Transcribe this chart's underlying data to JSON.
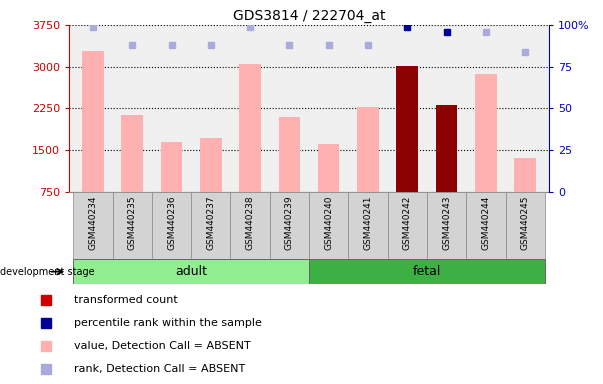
{
  "title": "GDS3814 / 222704_at",
  "samples": [
    "GSM440234",
    "GSM440235",
    "GSM440236",
    "GSM440237",
    "GSM440238",
    "GSM440239",
    "GSM440240",
    "GSM440241",
    "GSM440242",
    "GSM440243",
    "GSM440244",
    "GSM440245"
  ],
  "bar_values": [
    3280,
    2130,
    1650,
    1720,
    3050,
    2100,
    1610,
    2270,
    3010,
    2310,
    2870,
    1360
  ],
  "bar_colors": [
    "#FFB0B0",
    "#FFB0B0",
    "#FFB0B0",
    "#FFB0B0",
    "#FFB0B0",
    "#FFB0B0",
    "#FFB0B0",
    "#FFB0B0",
    "#8B0000",
    "#8B0000",
    "#FFB0B0",
    "#FFB0B0"
  ],
  "rank_values": [
    99,
    88,
    88,
    88,
    99,
    88,
    88,
    88,
    99,
    96,
    96,
    84
  ],
  "rank_colors": [
    "#AAAADD",
    "#AAAADD",
    "#AAAADD",
    "#AAAADD",
    "#AAAADD",
    "#AAAADD",
    "#AAAADD",
    "#AAAADD",
    "#000099",
    "#000099",
    "#AAAADD",
    "#AAAADD"
  ],
  "ylim_left": [
    750,
    3750
  ],
  "ylim_right": [
    0,
    100
  ],
  "yticks_left": [
    750,
    1500,
    2250,
    3000,
    3750
  ],
  "yticks_right": [
    0,
    25,
    50,
    75,
    100
  ],
  "ytick_labels_right": [
    "0",
    "25",
    "50",
    "75",
    "100%"
  ],
  "adult_color": "#90EE90",
  "fetal_color": "#3CB043",
  "sample_box_color": "#D3D3D3",
  "background_color": "#FFFFFF",
  "left_axis_color": "#CC0000",
  "right_axis_color": "#0000CC",
  "legend_colors": [
    "#CC0000",
    "#000099",
    "#FFB0B0",
    "#AAAADD"
  ],
  "legend_labels": [
    "transformed count",
    "percentile rank within the sample",
    "value, Detection Call = ABSENT",
    "rank, Detection Call = ABSENT"
  ]
}
